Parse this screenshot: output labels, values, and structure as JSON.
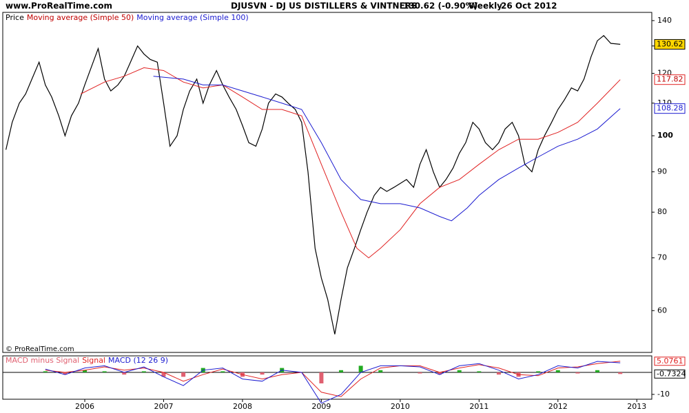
{
  "header": {
    "site": "www.ProRealTime.com",
    "title": "DJUSVN - DJ US DISTILLERS & VINTNERS",
    "last": "130.62 (-0.90%)",
    "period": "Weekly",
    "date": "26 Oct 2012"
  },
  "chart_data": [
    {
      "type": "line",
      "panel": "price",
      "log_scale": true,
      "copyright": "© ProRealTime.com",
      "xlim": [
        2004.96,
        2013.19
      ],
      "xticks": [
        2006,
        2007,
        2008,
        2009,
        2010,
        2011,
        2012,
        2013
      ],
      "ylim": [
        53.1,
        143.4
      ],
      "yticks": [
        60,
        70,
        80,
        90,
        100,
        110,
        120,
        130,
        140
      ],
      "series": [
        {
          "name": "Price",
          "color": "#000000",
          "label_color": "#000000",
          "box_color": "#ffd700",
          "x": [
            2005.0,
            2005.08,
            2005.17,
            2005.25,
            2005.33,
            2005.42,
            2005.5,
            2005.58,
            2005.67,
            2005.75,
            2005.83,
            2005.92,
            2006.0,
            2006.08,
            2006.17,
            2006.25,
            2006.33,
            2006.42,
            2006.5,
            2006.58,
            2006.67,
            2006.75,
            2006.83,
            2006.92,
            2007.0,
            2007.08,
            2007.17,
            2007.25,
            2007.33,
            2007.42,
            2007.5,
            2007.58,
            2007.67,
            2007.75,
            2007.83,
            2007.92,
            2008.0,
            2008.08,
            2008.17,
            2008.25,
            2008.33,
            2008.42,
            2008.5,
            2008.58,
            2008.67,
            2008.75,
            2008.83,
            2008.92,
            2009.0,
            2009.08,
            2009.17,
            2009.25,
            2009.33,
            2009.42,
            2009.5,
            2009.58,
            2009.67,
            2009.75,
            2009.83,
            2009.92,
            2010.0,
            2010.08,
            2010.17,
            2010.25,
            2010.33,
            2010.42,
            2010.5,
            2010.58,
            2010.67,
            2010.75,
            2010.83,
            2010.92,
            2011.0,
            2011.08,
            2011.17,
            2011.25,
            2011.33,
            2011.42,
            2011.5,
            2011.58,
            2011.67,
            2011.75,
            2011.83,
            2011.92,
            2012.0,
            2012.08,
            2012.17,
            2012.25,
            2012.33,
            2012.42,
            2012.5,
            2012.58,
            2012.67,
            2012.79
          ],
          "values": [
            96,
            104,
            110,
            113,
            118,
            124,
            116,
            112,
            106,
            100,
            106,
            110,
            116,
            122,
            129,
            118,
            114,
            116,
            119,
            124,
            130,
            127,
            125,
            124,
            110,
            97,
            100,
            108,
            114,
            118,
            110,
            116,
            121,
            116,
            112,
            108,
            103,
            98,
            97,
            102,
            110,
            113,
            112,
            110,
            108,
            104,
            90,
            72,
            66,
            62,
            56,
            62,
            68,
            72,
            76,
            80,
            84,
            86,
            85,
            86,
            87,
            88,
            86,
            92,
            96,
            90,
            86,
            88,
            91,
            95,
            98,
            104,
            102,
            98,
            96,
            98,
            102,
            104,
            100,
            92,
            90,
            96,
            100,
            104,
            108,
            111,
            115,
            114,
            118,
            126,
            132,
            134,
            131,
            130.62
          ]
        },
        {
          "name": "Moving average (Simple 50)",
          "color": "#e02020",
          "label_color": "#c00000",
          "box_color": "#ffffff",
          "x": [
            2005.95,
            2006.25,
            2006.5,
            2006.75,
            2007.0,
            2007.25,
            2007.5,
            2007.75,
            2008.0,
            2008.25,
            2008.5,
            2008.75,
            2009.0,
            2009.25,
            2009.45,
            2009.6,
            2009.75,
            2010.0,
            2010.25,
            2010.5,
            2010.75,
            2011.0,
            2011.25,
            2011.5,
            2011.75,
            2012.0,
            2012.25,
            2012.5,
            2012.79
          ],
          "values": [
            113,
            117,
            119,
            122,
            121,
            117,
            115,
            116,
            112,
            108,
            108,
            106,
            92,
            80,
            72,
            70,
            72,
            76,
            82,
            86,
            88,
            92,
            96,
            99,
            99,
            101,
            104,
            110,
            117.82
          ]
        },
        {
          "name": "Moving average (Simple 100)",
          "color": "#1a1ad0",
          "label_color": "#1a1ad0",
          "box_color": "#ffffff",
          "x": [
            2006.87,
            2007.25,
            2007.5,
            2007.75,
            2008.0,
            2008.25,
            2008.5,
            2008.75,
            2009.0,
            2009.25,
            2009.5,
            2009.75,
            2010.0,
            2010.25,
            2010.5,
            2010.65,
            2010.85,
            2011.0,
            2011.25,
            2011.5,
            2011.75,
            2012.0,
            2012.25,
            2012.5,
            2012.79
          ],
          "values": [
            119,
            118,
            116,
            116,
            114,
            112,
            110,
            108,
            98,
            88,
            83,
            82,
            82,
            81,
            79,
            78,
            81,
            84,
            88,
            91,
            94,
            97,
            99,
            102,
            108.28
          ]
        }
      ]
    },
    {
      "type": "macd",
      "panel": "macd",
      "xlim": [
        2004.96,
        2013.19
      ],
      "ylim": [
        -12.2,
        7.5
      ],
      "yticks": [
        -10
      ],
      "x": [
        2005.5,
        2005.75,
        2006.0,
        2006.25,
        2006.5,
        2006.75,
        2007.0,
        2007.25,
        2007.5,
        2007.75,
        2008.0,
        2008.25,
        2008.5,
        2008.75,
        2009.0,
        2009.25,
        2009.5,
        2009.75,
        2010.0,
        2010.25,
        2010.5,
        2010.75,
        2011.0,
        2011.25,
        2011.5,
        2011.75,
        2012.0,
        2012.25,
        2012.5,
        2012.79
      ],
      "series": [
        {
          "name": "MACD minus Signal",
          "type": "histogram",
          "color": "#22aa22",
          "negative_color": "#e06070",
          "values": [
            0.5,
            -1,
            1,
            0.5,
            -1,
            0.5,
            -2,
            -2,
            2,
            0.5,
            -2,
            -1,
            2,
            0,
            -5,
            1,
            3,
            1,
            0,
            -0.5,
            -1,
            1,
            0.5,
            -1,
            -2,
            0.5,
            1,
            -0.5,
            1,
            -0.7324
          ]
        },
        {
          "name": "Signal",
          "type": "line",
          "color": "#e02020",
          "values": [
            1,
            0,
            1,
            2.5,
            1,
            2,
            0,
            -4,
            -1,
            1.5,
            -1,
            -3,
            -1,
            0,
            -9,
            -11,
            -3,
            2,
            3,
            3,
            0,
            2,
            3.5,
            2,
            -1,
            -1.5,
            2,
            2.5,
            4,
            5.0761
          ]
        },
        {
          "name": "MACD (12 26 9)",
          "type": "line",
          "color": "#1a1ad0",
          "values": [
            1.5,
            -1,
            2,
            3,
            0,
            2.5,
            -2,
            -6,
            1,
            2,
            -3,
            -4,
            1,
            0,
            -14,
            -10,
            0,
            3,
            3,
            2.5,
            -1,
            3,
            4,
            1,
            -3,
            -1,
            3,
            2,
            5,
            4.34
          ]
        }
      ]
    }
  ]
}
